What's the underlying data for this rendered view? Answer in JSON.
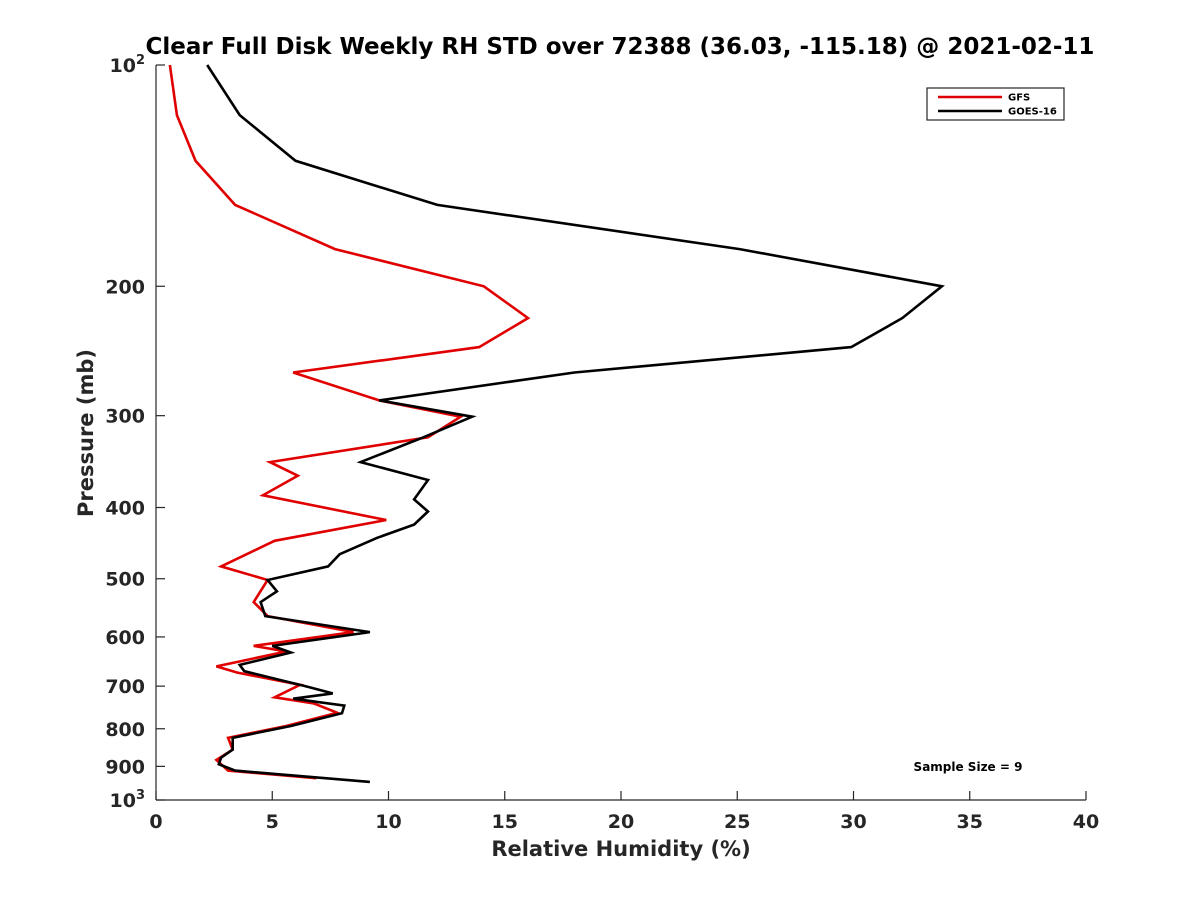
{
  "chart_data": {
    "type": "line",
    "title": "Clear Full Disk Weekly RH STD over 72388 (36.03, -115.18) @ 2021-02-11",
    "xlabel": "Relative Humidity (%)",
    "ylabel": "Pressure (mb)",
    "xlim": [
      0,
      40
    ],
    "ylim": [
      100,
      1000
    ],
    "y_scale": "log",
    "y_reversed": true,
    "grid": false,
    "legend_position": "top-right",
    "x_ticks": [
      0,
      5,
      10,
      15,
      20,
      25,
      30,
      35,
      40
    ],
    "x_tick_labels": [
      "0",
      "5",
      "10",
      "15",
      "20",
      "25",
      "30",
      "35",
      "40"
    ],
    "y_ticks": [
      {
        "value": 100,
        "base": "10",
        "exp": "2"
      },
      {
        "value": 200,
        "label": "200"
      },
      {
        "value": 300,
        "label": "300"
      },
      {
        "value": 400,
        "label": "400"
      },
      {
        "value": 500,
        "label": "500"
      },
      {
        "value": 600,
        "label": "600"
      },
      {
        "value": 700,
        "label": "700"
      },
      {
        "value": 800,
        "label": "800"
      },
      {
        "value": 900,
        "label": "900"
      },
      {
        "value": 1000,
        "base": "10",
        "exp": "3"
      }
    ],
    "series": [
      {
        "name": "GFS",
        "color": "#e00000",
        "points": [
          [
            0.6,
            100
          ],
          [
            0.9,
            117
          ],
          [
            1.7,
            135
          ],
          [
            3.4,
            155
          ],
          [
            7.7,
            178
          ],
          [
            14.1,
            200
          ],
          [
            16.0,
            221
          ],
          [
            13.9,
            242
          ],
          [
            5.9,
            262
          ],
          [
            9.6,
            286
          ],
          [
            13.1,
            301
          ],
          [
            11.7,
            321
          ],
          [
            4.9,
            347
          ],
          [
            6.1,
            362
          ],
          [
            4.6,
            385
          ],
          [
            9.9,
            416
          ],
          [
            5.1,
            444
          ],
          [
            2.8,
            481
          ],
          [
            4.8,
            502
          ],
          [
            4.2,
            538
          ],
          [
            4.8,
            562
          ],
          [
            8.5,
            591
          ],
          [
            4.2,
            617
          ],
          [
            5.6,
            628
          ],
          [
            2.6,
            658
          ],
          [
            3.5,
            671
          ],
          [
            6.2,
            697
          ],
          [
            5.1,
            725
          ],
          [
            6.8,
            739
          ],
          [
            7.8,
            761
          ],
          [
            5.6,
            793
          ],
          [
            3.1,
            823
          ],
          [
            3.3,
            854
          ],
          [
            2.6,
            882
          ],
          [
            3.1,
            912
          ],
          [
            6.9,
            934
          ]
        ]
      },
      {
        "name": "GOES-16",
        "color": "#000000",
        "points": [
          [
            2.2,
            100
          ],
          [
            3.6,
            117
          ],
          [
            6.0,
            135
          ],
          [
            12.1,
            155
          ],
          [
            25.1,
            178
          ],
          [
            33.8,
            200
          ],
          [
            32.1,
            221
          ],
          [
            29.9,
            242
          ],
          [
            18.0,
            262
          ],
          [
            9.6,
            286
          ],
          [
            13.6,
            301
          ],
          [
            11.5,
            321
          ],
          [
            8.8,
            347
          ],
          [
            11.7,
            367
          ],
          [
            11.1,
            390
          ],
          [
            11.7,
            405
          ],
          [
            11.1,
            422
          ],
          [
            9.5,
            440
          ],
          [
            7.9,
            463
          ],
          [
            7.4,
            481
          ],
          [
            4.8,
            502
          ],
          [
            5.2,
            520
          ],
          [
            4.5,
            538
          ],
          [
            4.7,
            562
          ],
          [
            9.2,
            591
          ],
          [
            5.0,
            617
          ],
          [
            5.8,
            630
          ],
          [
            3.6,
            655
          ],
          [
            3.8,
            668
          ],
          [
            6.5,
            701
          ],
          [
            7.6,
            716
          ],
          [
            5.9,
            728
          ],
          [
            8.1,
            744
          ],
          [
            8.0,
            762
          ],
          [
            5.8,
            793
          ],
          [
            3.3,
            823
          ],
          [
            3.3,
            854
          ],
          [
            2.8,
            876
          ],
          [
            2.7,
            894
          ],
          [
            3.4,
            912
          ],
          [
            9.2,
            945
          ]
        ]
      }
    ],
    "annotation": "Sample Size = 9"
  }
}
